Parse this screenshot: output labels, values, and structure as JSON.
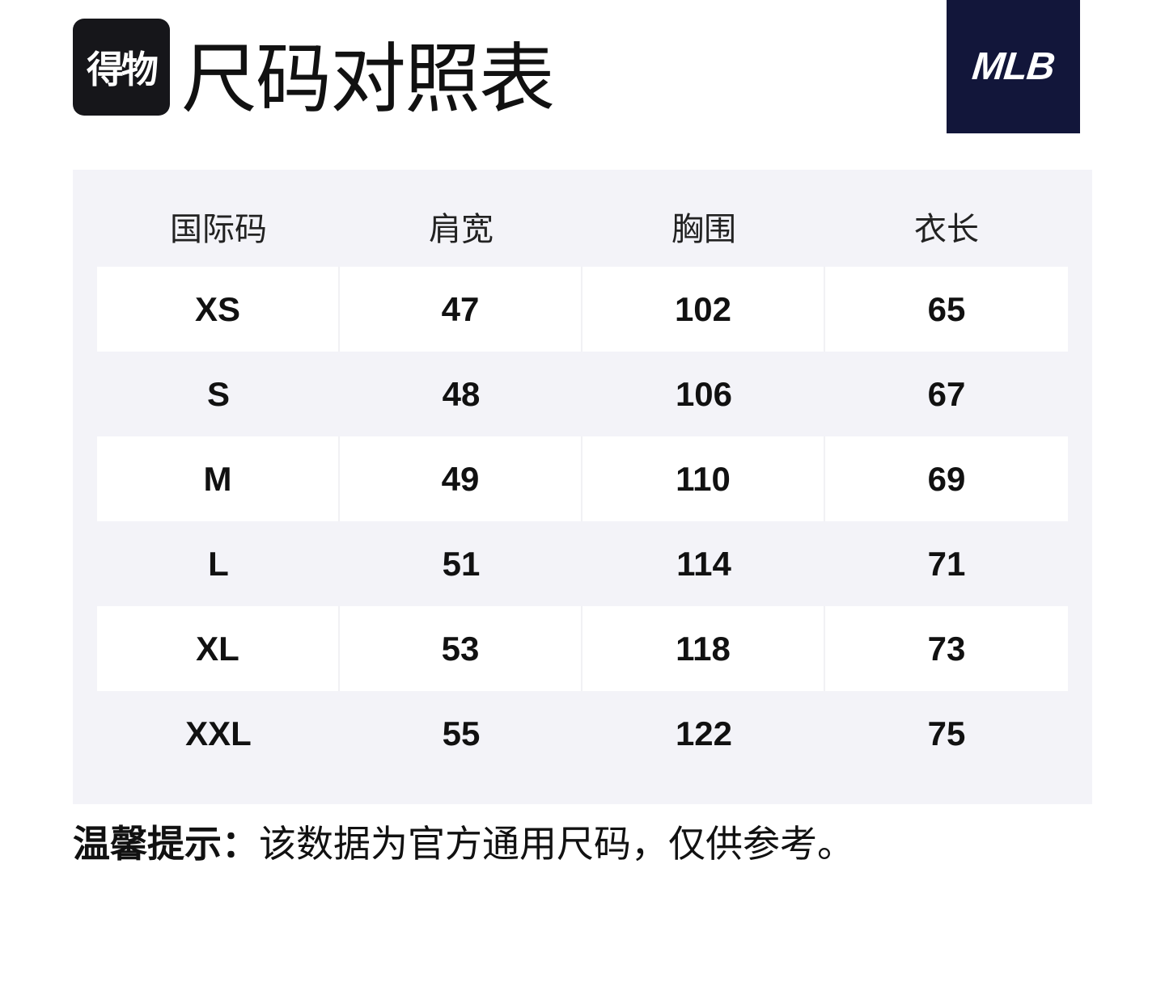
{
  "header": {
    "app_icon_text": "得物",
    "title": "尺码对照表",
    "brand_logo_text": "MLB"
  },
  "colors": {
    "app_icon_bg": "#16161a",
    "brand_bg": "#12163a",
    "table_bg": "#f3f3f8",
    "stripe_bg": "#ffffff"
  },
  "table": {
    "columns": [
      "国际码",
      "肩宽",
      "胸围",
      "衣长"
    ],
    "rows": [
      [
        "XS",
        "47",
        "102",
        "65"
      ],
      [
        "S",
        "48",
        "106",
        "67"
      ],
      [
        "M",
        "49",
        "110",
        "69"
      ],
      [
        "L",
        "51",
        "114",
        "71"
      ],
      [
        "XL",
        "53",
        "118",
        "73"
      ],
      [
        "XXL",
        "55",
        "122",
        "75"
      ]
    ]
  },
  "note": {
    "label": "温馨提示：",
    "text": "该数据为官方通用尺码，仅供参考。"
  }
}
